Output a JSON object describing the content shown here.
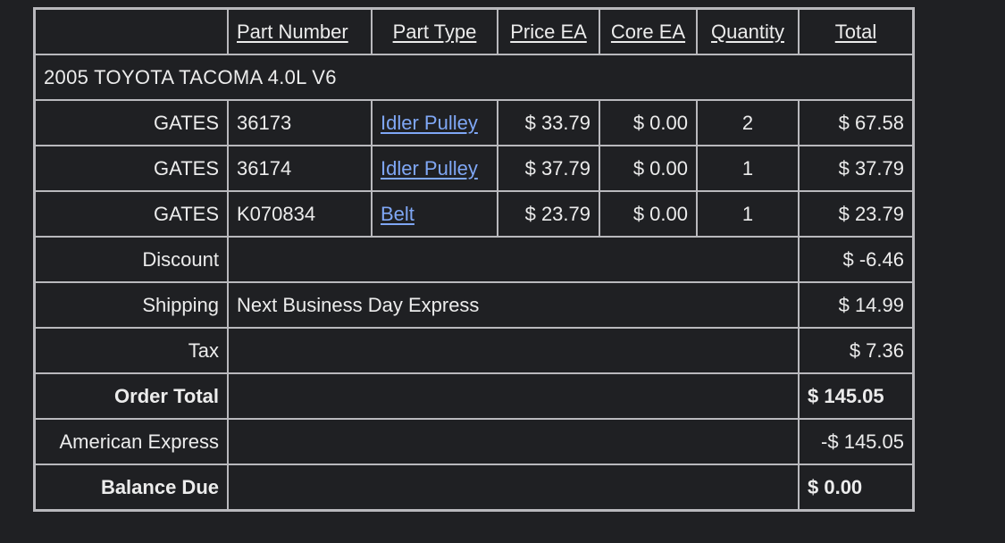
{
  "headers": {
    "part_number": "Part Number",
    "part_type": "Part Type",
    "price_ea": "Price EA",
    "core_ea": "Core EA",
    "quantity": "Quantity",
    "total": "Total"
  },
  "vehicle": "2005 TOYOTA TACOMA 4.0L V6",
  "items": [
    {
      "brand": "GATES",
      "part_number": "36173",
      "part_type": "Idler Pulley",
      "price": "$ 33.79",
      "core": "$ 0.00",
      "qty": "2",
      "total": "$ 67.58"
    },
    {
      "brand": "GATES",
      "part_number": "36174",
      "part_type": "Idler Pulley",
      "price": "$ 37.79",
      "core": "$ 0.00",
      "qty": "1",
      "total": "$ 37.79"
    },
    {
      "brand": "GATES",
      "part_number": "K070834",
      "part_type": "Belt",
      "price": "$ 23.79",
      "core": "$ 0.00",
      "qty": "1",
      "total": "$ 23.79"
    }
  ],
  "summary": {
    "discount": {
      "label": "Discount",
      "detail": "",
      "value": "$ -6.46"
    },
    "shipping": {
      "label": "Shipping",
      "detail": "Next Business Day Express",
      "value": "$ 14.99"
    },
    "tax": {
      "label": "Tax",
      "detail": "",
      "value": "$ 7.36"
    },
    "order_total": {
      "label": "Order Total",
      "detail": "",
      "value": "$ 145.05"
    },
    "payment": {
      "label": "American Express",
      "detail": "",
      "value": "-$ 145.05"
    },
    "balance_due": {
      "label": "Balance Due",
      "detail": "",
      "value": "$ 0.00"
    }
  },
  "colors": {
    "background": "#1f2023",
    "border": "#b9b9bd",
    "link": "#7fa7f5",
    "text": "#ececec"
  }
}
